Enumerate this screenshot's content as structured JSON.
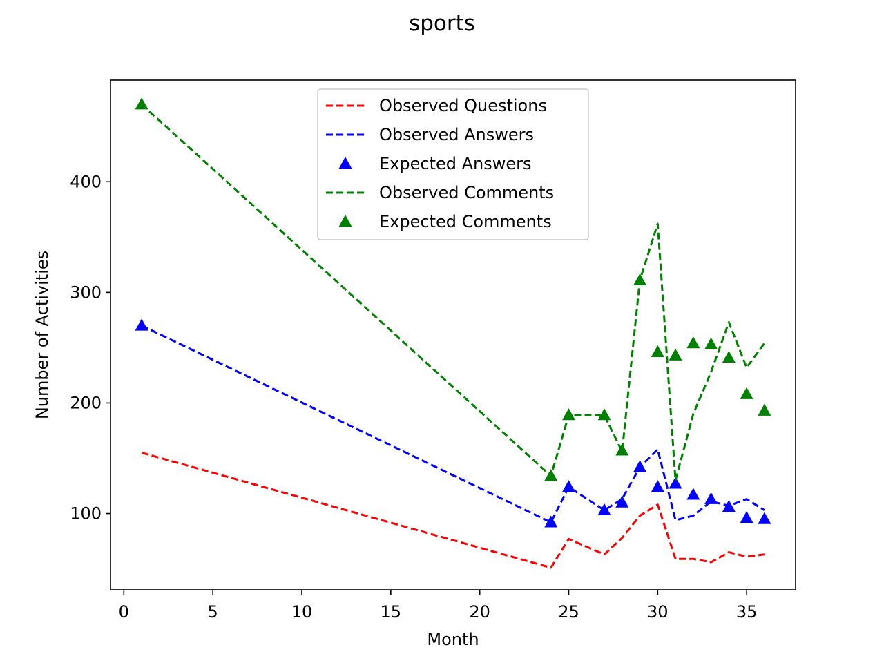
{
  "chart_data": {
    "type": "line",
    "title": "sports",
    "xlabel": "Month",
    "ylabel": "Number of Activities",
    "xlim": [
      -0.75,
      37.75
    ],
    "ylim": [
      31,
      492
    ],
    "xticks": [
      0,
      5,
      10,
      15,
      20,
      25,
      30,
      35
    ],
    "yticks": [
      100,
      200,
      300,
      400
    ],
    "grid": false,
    "legend_position": "top-center",
    "series": [
      {
        "name": "Observed Questions",
        "style": "dashed-line",
        "color": "#ff0000",
        "x": [
          1,
          24,
          25,
          27,
          28,
          29,
          30,
          31,
          32,
          33,
          34,
          35,
          36
        ],
        "y": [
          155,
          51,
          77,
          63,
          78,
          98,
          108,
          59,
          59,
          56,
          65,
          61,
          63
        ]
      },
      {
        "name": "Observed Answers",
        "style": "dashed-line",
        "color": "#0000ff",
        "x": [
          1,
          24,
          25,
          27,
          28,
          29,
          30,
          31,
          32,
          33,
          34,
          35,
          36
        ],
        "y": [
          270,
          92,
          124,
          103,
          113,
          142,
          158,
          94,
          98,
          111,
          107,
          113,
          103
        ]
      },
      {
        "name": "Expected Answers",
        "style": "triangle-marker",
        "color": "#0000ff",
        "x": [
          1,
          24,
          25,
          27,
          28,
          29,
          30,
          31,
          32,
          33,
          34,
          35,
          36
        ],
        "y": [
          270,
          92,
          124,
          103,
          110,
          142,
          124,
          127,
          117,
          113,
          106,
          96,
          95
        ]
      },
      {
        "name": "Observed Comments",
        "style": "dashed-line",
        "color": "#008000",
        "x": [
          1,
          24,
          25,
          27,
          28,
          29,
          30,
          31,
          32,
          33,
          34,
          35,
          36
        ],
        "y": [
          470,
          134,
          189,
          189,
          156,
          311,
          362,
          130,
          190,
          228,
          273,
          232,
          254
        ]
      },
      {
        "name": "Expected Comments",
        "style": "triangle-marker",
        "color": "#008000",
        "x": [
          1,
          24,
          25,
          27,
          28,
          29,
          30,
          31,
          32,
          33,
          34,
          35,
          36
        ],
        "y": [
          470,
          134,
          189,
          189,
          157,
          311,
          246,
          243,
          254,
          253,
          241,
          208,
          193
        ]
      }
    ]
  }
}
